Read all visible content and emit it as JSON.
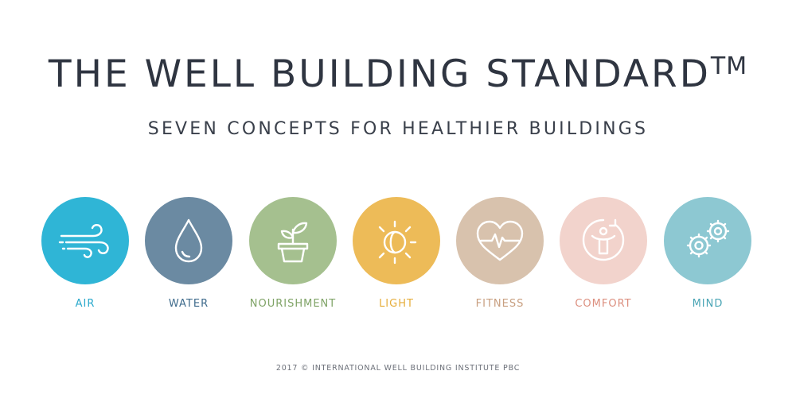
{
  "header": {
    "title": "THE WELL BUILDING STANDARD",
    "trademark": "TM",
    "subtitle": "SEVEN CONCEPTS FOR HEALTHIER BUILDINGS"
  },
  "concepts": [
    {
      "label": "AIR",
      "icon": "wind-icon",
      "color": "#2fb5d6",
      "label_color": "#2aa9cc"
    },
    {
      "label": "WATER",
      "icon": "water-drop-icon",
      "color": "#6b8aa2",
      "label_color": "#3f6b8c"
    },
    {
      "label": "NOURISHMENT",
      "icon": "plant-pot-icon",
      "color": "#a5c08f",
      "label_color": "#7fa366"
    },
    {
      "label": "LIGHT",
      "icon": "sun-icon",
      "color": "#edbb58",
      "label_color": "#e6ae3c"
    },
    {
      "label": "FITNESS",
      "icon": "heart-pulse-icon",
      "color": "#d8c2ad",
      "label_color": "#c89f80"
    },
    {
      "label": "COMFORT",
      "icon": "person-refresh-icon",
      "color": "#f2d3cc",
      "label_color": "#dc8f7f"
    },
    {
      "label": "MIND",
      "icon": "gears-icon",
      "color": "#8dc8d2",
      "label_color": "#4aa5b5"
    }
  ],
  "footer": {
    "text": "2017 © INTERNATIONAL WELL BUILDING INSTITUTE PBC"
  }
}
